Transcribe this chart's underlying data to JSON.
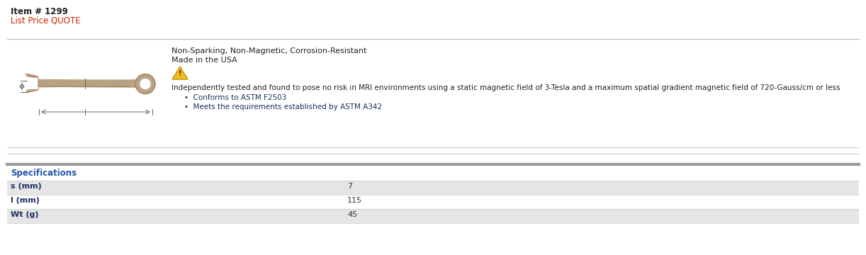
{
  "item_number": "Item # 1299",
  "list_price": "List Price QUOTE",
  "section1_text_line1": "Non-Sparking, Non-Magnetic, Corrosion-Resistant",
  "section1_text_line2": "Made in the USA",
  "section1_mri_text": "Independently tested and found to pose no risk in MRI environments using a static magnetic field of 3-Tesla and a maximum spatial gradient magnetic field of 720-Gauss/cm or less",
  "bullet1": "Conforms to ASTM F2503",
  "bullet2": "Meets the requirements established by ASTM A342",
  "spec_header": "Specifications",
  "spec_rows": [
    {
      "label": "s (mm)",
      "value": "7"
    },
    {
      "label": "l (mm)",
      "value": "115"
    },
    {
      "label": "Wt (g)",
      "value": "45"
    }
  ],
  "bg_color": "#ffffff",
  "text_color_black": "#222222",
  "text_color_red": "#cc2200",
  "text_color_navy": "#1a3060",
  "separator_color": "#bbbbbb",
  "separator_thick_color": "#999999",
  "row_bg_odd": "#e5e5e5",
  "row_bg_even": "#ffffff",
  "spec_header_color": "#2255aa",
  "spec_label_color": "#1a3060",
  "value_color": "#333333",
  "item_fontsize": 8.5,
  "body_fontsize": 8.0,
  "spec_fontsize": 8.0,
  "wrench_color": "#b8a080",
  "wrench_dark": "#a08060"
}
